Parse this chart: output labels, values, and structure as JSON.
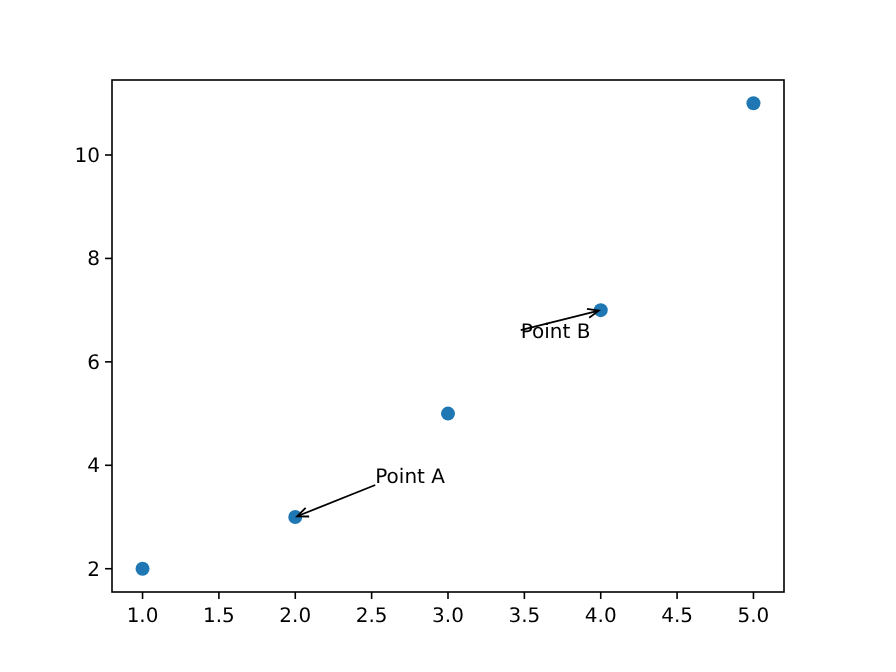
{
  "chart_data": {
    "type": "scatter",
    "x": [
      1,
      2,
      3,
      4,
      5
    ],
    "values": [
      2,
      3,
      5,
      7,
      11
    ],
    "color": "#1f77b4",
    "marker": "circle",
    "xlim": [
      0.8,
      5.2
    ],
    "ylim": [
      1.55,
      11.45
    ],
    "xticks": [
      {
        "value": 1,
        "label": "1.0"
      },
      {
        "value": 1.5,
        "label": "1.5"
      },
      {
        "value": 2,
        "label": "2.0"
      },
      {
        "value": 2.5,
        "label": "2.5"
      },
      {
        "value": 3,
        "label": "3.0"
      },
      {
        "value": 3.5,
        "label": "3.5"
      },
      {
        "value": 4,
        "label": "4.0"
      },
      {
        "value": 4.5,
        "label": "4.5"
      },
      {
        "value": 5,
        "label": "5.0"
      }
    ],
    "yticks": [
      2,
      4,
      6,
      8,
      10
    ],
    "annotations": [
      {
        "text": "Point A",
        "x": 2,
        "y": 3
      },
      {
        "text": "Point B",
        "x": 4,
        "y": 7
      }
    ]
  }
}
